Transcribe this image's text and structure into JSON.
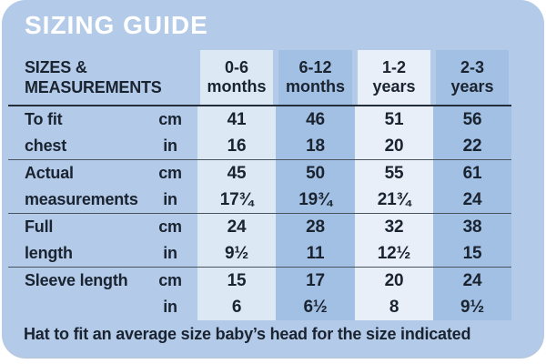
{
  "title": "SIZING GUIDE",
  "corner": {
    "line1": "SIZES &",
    "line2": "MEASUREMENTS"
  },
  "columns": [
    {
      "range": "0-6",
      "unit": "months"
    },
    {
      "range": "6-12",
      "unit": "months"
    },
    {
      "range": "1-2",
      "unit": "years"
    },
    {
      "range": "2-3",
      "unit": "years"
    }
  ],
  "rows": [
    {
      "label1": "To fit",
      "label2": "chest",
      "unit1": "cm",
      "unit2": "in",
      "cm": [
        "41",
        "46",
        "51",
        "56"
      ],
      "in": [
        "16",
        "18",
        "20",
        "22"
      ]
    },
    {
      "label1": "Actual",
      "label2": "measurements",
      "unit1": "cm",
      "unit2": "in",
      "cm": [
        "45",
        "50",
        "55",
        "61"
      ],
      "in": [
        "17¾",
        "19¾",
        "21¾",
        "24"
      ]
    },
    {
      "label1": "Full",
      "label2": "length",
      "unit1": "cm",
      "unit2": "in",
      "cm": [
        "24",
        "28",
        "32",
        "38"
      ],
      "in": [
        "9½",
        "11",
        "12½",
        "15"
      ]
    },
    {
      "label1": "Sleeve length",
      "label2": "",
      "unit1": "cm",
      "unit2": "in",
      "cm": [
        "15",
        "17",
        "20",
        "24"
      ],
      "in": [
        "6",
        "6½",
        "8",
        "9½"
      ]
    }
  ],
  "footer": "Hat to fit an average size baby’s head for the size indicated",
  "colors": {
    "card_background": "#b3cbe9",
    "column_medium": "#a2c0e3",
    "column_light": "#dde8f5",
    "column_lighter": "#e8eff9",
    "text": "#1a2330",
    "title_text": "#ffffff",
    "header_rule": "#242e3a",
    "row_rule": "#4a545f"
  },
  "chart_data": {
    "type": "table",
    "title": "SIZING GUIDE",
    "columns": [
      "0-6 months",
      "6-12 months",
      "1-2 years",
      "2-3 years"
    ],
    "rows": [
      {
        "measurement": "To fit chest",
        "unit": "cm",
        "values": [
          41,
          46,
          51,
          56
        ]
      },
      {
        "measurement": "To fit chest",
        "unit": "in",
        "values": [
          16,
          18,
          20,
          22
        ]
      },
      {
        "measurement": "Actual measurements",
        "unit": "cm",
        "values": [
          45,
          50,
          55,
          61
        ]
      },
      {
        "measurement": "Actual measurements",
        "unit": "in",
        "values": [
          17.75,
          19.75,
          21.75,
          24
        ]
      },
      {
        "measurement": "Full length",
        "unit": "cm",
        "values": [
          24,
          28,
          32,
          38
        ]
      },
      {
        "measurement": "Full length",
        "unit": "in",
        "values": [
          9.5,
          11,
          12.5,
          15
        ]
      },
      {
        "measurement": "Sleeve length",
        "unit": "cm",
        "values": [
          15,
          17,
          20,
          24
        ]
      },
      {
        "measurement": "Sleeve length",
        "unit": "in",
        "values": [
          6,
          6.5,
          8,
          9.5
        ]
      }
    ],
    "note": "Hat to fit an average size baby’s head for the size indicated"
  }
}
